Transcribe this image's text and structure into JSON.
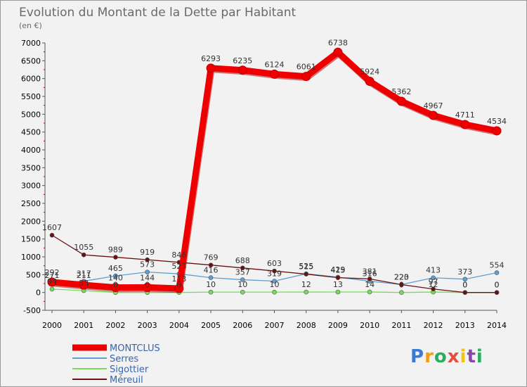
{
  "chart_data": {
    "type": "line",
    "title": "Evolution du Montant de la Dette par Habitant",
    "subtitle": "(en €)",
    "x": [
      "2000",
      "2001",
      "2002",
      "2003",
      "2004",
      "2005",
      "2006",
      "2007",
      "2008",
      "2009",
      "2010",
      "2011",
      "2012",
      "2013",
      "2014"
    ],
    "ylim": [
      -500,
      7000
    ],
    "yticks": [
      "-500",
      "0",
      "500",
      "1000",
      "1500",
      "2000",
      "2500",
      "3000",
      "3500",
      "4000",
      "4500",
      "5000",
      "5500",
      "6000",
      "6500",
      "7000"
    ],
    "grid": false,
    "legend_position": "bottom-left",
    "series": [
      {
        "name": "MONTCLUS",
        "color": "#ee0000",
        "values": [
          292,
          211,
          140,
          144,
          113,
          6293,
          6235,
          6124,
          6061,
          6738,
          5924,
          5362,
          4967,
          4711,
          4534
        ]
      },
      {
        "name": "Serres",
        "color": "#5f9fd0",
        "values": [
          271,
          317,
          465,
          573,
          523,
          416,
          357,
          319,
          525,
          429,
          316,
          223,
          413,
          373,
          554
        ]
      },
      {
        "name": "Sigottier",
        "color": "#77dd55",
        "values": [
          94,
          53,
          0,
          0,
          0,
          10,
          10,
          10,
          12,
          13,
          14,
          0,
          12,
          0,
          0
        ]
      },
      {
        "name": "Méreuil",
        "color": "#6a1010",
        "values": [
          1607,
          1055,
          989,
          919,
          846,
          769,
          688,
          603,
          515,
          415,
          381,
          220,
          97,
          0,
          0
        ]
      }
    ]
  },
  "brand": {
    "letters": [
      "P",
      "r",
      "o",
      "x",
      "i",
      "t",
      "i"
    ],
    "colors": [
      "#3a7bd5",
      "#f39c12",
      "#27ae60",
      "#e74c3c",
      "#f1c40f",
      "#8e44ad",
      "#27ae60"
    ]
  }
}
